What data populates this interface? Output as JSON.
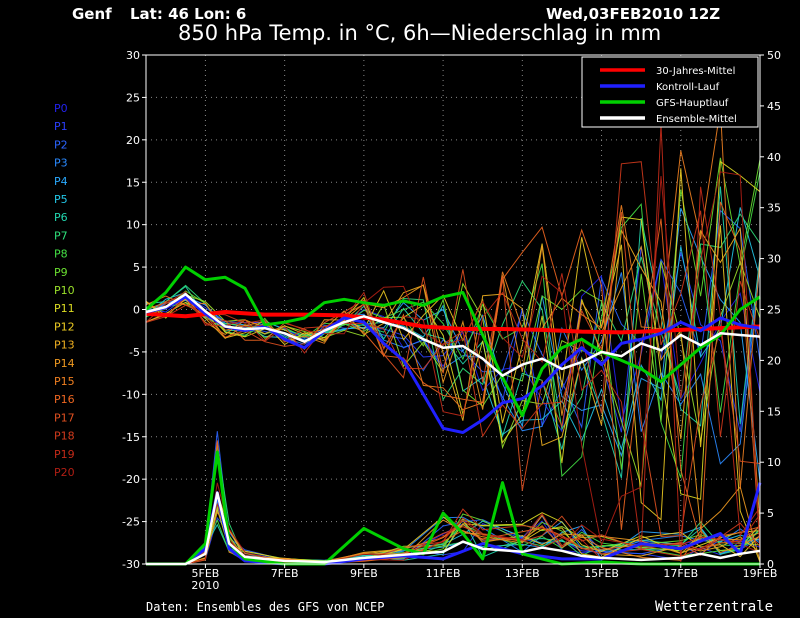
{
  "header": {
    "location": "Genf",
    "coords": "Lat: 46 Lon: 6",
    "run": "Wed,03FEB2010 12Z",
    "title": "850 hPa Temp. in °C, 6h—Niederschlag in mm"
  },
  "footer": {
    "source": "Daten: Ensembles des GFS von NCEP",
    "brand": "Wetterzentrale"
  },
  "colors": {
    "grid": "#888888",
    "clim": "#ff0000",
    "control": "#2020ff",
    "main": "#00d000",
    "mean": "#ffffff"
  },
  "members": [
    {
      "label": "P0",
      "color": "#2222ee"
    },
    {
      "label": "P1",
      "color": "#2b3fff"
    },
    {
      "label": "P2",
      "color": "#2a63ff"
    },
    {
      "label": "P3",
      "color": "#2a8aff"
    },
    {
      "label": "P4",
      "color": "#2aaaff"
    },
    {
      "label": "P5",
      "color": "#22c8e8"
    },
    {
      "label": "P6",
      "color": "#22d8b0"
    },
    {
      "label": "P7",
      "color": "#2ee07a"
    },
    {
      "label": "P8",
      "color": "#44e044"
    },
    {
      "label": "P9",
      "color": "#6ae030"
    },
    {
      "label": "P10",
      "color": "#9ae02a"
    },
    {
      "label": "P11",
      "color": "#dddd22"
    },
    {
      "label": "P12",
      "color": "#eecc22"
    },
    {
      "label": "P13",
      "color": "#f0b020"
    },
    {
      "label": "P14",
      "color": "#f09a20"
    },
    {
      "label": "P15",
      "color": "#f07f20"
    },
    {
      "label": "P16",
      "color": "#ee6620"
    },
    {
      "label": "P17",
      "color": "#e05020"
    },
    {
      "label": "P18",
      "color": "#d23a1c"
    },
    {
      "label": "P19",
      "color": "#c42a18"
    },
    {
      "label": "P20",
      "color": "#b01e14"
    }
  ],
  "chart_data": {
    "type": "line",
    "title": "850 hPa Temp. in °C, 6h—Niederschlag in mm",
    "x_ticks": [
      {
        "day": 5,
        "label": "5FEB",
        "sub": "2010"
      },
      {
        "day": 7,
        "label": "7FEB"
      },
      {
        "day": 9,
        "label": "9FEB"
      },
      {
        "day": 11,
        "label": "11FEB"
      },
      {
        "day": 13,
        "label": "13FEB"
      },
      {
        "day": 15,
        "label": "15FEB"
      },
      {
        "day": 17,
        "label": "17FEB"
      },
      {
        "day": 19,
        "label": "19FEB"
      }
    ],
    "xlim": [
      3.5,
      19
    ],
    "ylim_left": [
      -30,
      30
    ],
    "left_ticks": [
      30,
      25,
      20,
      15,
      10,
      5,
      0,
      -5,
      -10,
      -15,
      -20,
      -25,
      -30
    ],
    "ylim_right": [
      0,
      50
    ],
    "right_ticks": [
      50,
      45,
      40,
      35,
      30,
      25,
      20,
      15,
      10,
      5,
      0
    ],
    "grid": true,
    "legend": {
      "position": "top-right",
      "entries": [
        {
          "label": "30-Jahres-Mittel",
          "key": "clim"
        },
        {
          "label": "Kontroll-Lauf",
          "key": "control"
        },
        {
          "label": "GFS-Hauptlauf",
          "key": "main"
        },
        {
          "label": "Ensemble-Mittel",
          "key": "mean"
        }
      ]
    },
    "series": [
      {
        "name": "30-Jahres-Mittel",
        "key": "clim",
        "axis": "left",
        "points": [
          [
            3.5,
            -0.5
          ],
          [
            4.5,
            -0.8
          ],
          [
            5.5,
            -0.3
          ],
          [
            6.5,
            -0.6
          ],
          [
            7.5,
            -0.6
          ],
          [
            8.5,
            -0.7
          ],
          [
            9.5,
            -1.2
          ],
          [
            10.5,
            -2.0
          ],
          [
            11.5,
            -2.3
          ],
          [
            12.5,
            -2.3
          ],
          [
            13.5,
            -2.4
          ],
          [
            14.5,
            -2.6
          ],
          [
            15.5,
            -2.7
          ],
          [
            16.5,
            -2.5
          ],
          [
            17.5,
            -2.3
          ],
          [
            18.5,
            -2.1
          ],
          [
            19,
            -2.0
          ]
        ]
      },
      {
        "name": "Ensemble-Mittel",
        "key": "mean",
        "axis": "left",
        "points": [
          [
            3.5,
            -0.3
          ],
          [
            4,
            0.3
          ],
          [
            4.5,
            1.8
          ],
          [
            5,
            -0.2
          ],
          [
            5.5,
            -2.0
          ],
          [
            6,
            -2.3
          ],
          [
            6.5,
            -2.2
          ],
          [
            7,
            -2.8
          ],
          [
            7.5,
            -3.8
          ],
          [
            8,
            -2.5
          ],
          [
            8.5,
            -1.5
          ],
          [
            9,
            -0.8
          ],
          [
            9.5,
            -1.5
          ],
          [
            10,
            -2.2
          ],
          [
            10.5,
            -3.5
          ],
          [
            11,
            -4.5
          ],
          [
            11.5,
            -4.3
          ],
          [
            12,
            -5.8
          ],
          [
            12.5,
            -7.8
          ],
          [
            13,
            -6.5
          ],
          [
            13.5,
            -5.8
          ],
          [
            14,
            -7.0
          ],
          [
            14.5,
            -6.2
          ],
          [
            15,
            -5.0
          ],
          [
            15.5,
            -5.5
          ],
          [
            16,
            -4.0
          ],
          [
            16.5,
            -4.8
          ],
          [
            17,
            -3.0
          ],
          [
            17.5,
            -4.2
          ],
          [
            18,
            -2.8
          ],
          [
            18.5,
            -3.0
          ],
          [
            19,
            -3.2
          ]
        ]
      },
      {
        "name": "Kontroll-Lauf",
        "key": "control",
        "axis": "left",
        "points": [
          [
            3.5,
            -0.3
          ],
          [
            4,
            0.2
          ],
          [
            4.5,
            1.5
          ],
          [
            5,
            -0.5
          ],
          [
            5.5,
            -2.0
          ],
          [
            6,
            -2.5
          ],
          [
            6.5,
            -2.0
          ],
          [
            7,
            -3.5
          ],
          [
            7.5,
            -4.5
          ],
          [
            8,
            -2.5
          ],
          [
            8.5,
            -1.0
          ],
          [
            9,
            -1.5
          ],
          [
            9.5,
            -4.0
          ],
          [
            10,
            -6.0
          ],
          [
            10.5,
            -10.0
          ],
          [
            11,
            -14.0
          ],
          [
            11.5,
            -14.5
          ],
          [
            12,
            -13.0
          ],
          [
            12.5,
            -11.0
          ],
          [
            13,
            -10.5
          ],
          [
            13.5,
            -9.0
          ],
          [
            14,
            -6.5
          ],
          [
            14.5,
            -4.5
          ],
          [
            15,
            -6.5
          ],
          [
            15.5,
            -4.0
          ],
          [
            16,
            -3.5
          ],
          [
            16.5,
            -2.8
          ],
          [
            17,
            -1.5
          ],
          [
            17.5,
            -2.5
          ],
          [
            18,
            -1.0
          ],
          [
            18.5,
            -1.8
          ],
          [
            19,
            -2.2
          ]
        ]
      },
      {
        "name": "GFS-Hauptlauf",
        "key": "main",
        "axis": "left",
        "points": [
          [
            3.5,
            0.0
          ],
          [
            4,
            2.0
          ],
          [
            4.5,
            5.0
          ],
          [
            5,
            3.5
          ],
          [
            5.5,
            3.8
          ],
          [
            6,
            2.5
          ],
          [
            6.5,
            -1.8
          ],
          [
            7,
            -1.5
          ],
          [
            7.5,
            -1.0
          ],
          [
            8,
            0.8
          ],
          [
            8.5,
            1.2
          ],
          [
            9,
            0.8
          ],
          [
            9.5,
            0.5
          ],
          [
            10,
            1.0
          ],
          [
            10.5,
            0.5
          ],
          [
            11,
            1.5
          ],
          [
            11.5,
            2.0
          ],
          [
            12,
            -3.0
          ],
          [
            12.5,
            -8.0
          ],
          [
            13,
            -12.5
          ],
          [
            13.5,
            -7.0
          ],
          [
            14,
            -4.5
          ],
          [
            14.5,
            -3.5
          ],
          [
            15,
            -5.0
          ],
          [
            15.5,
            -6.0
          ],
          [
            16,
            -7.0
          ],
          [
            16.5,
            -8.5
          ],
          [
            17,
            -6.5
          ],
          [
            17.5,
            -4.5
          ],
          [
            18,
            -3.0
          ],
          [
            18.5,
            0.0
          ],
          [
            19,
            1.5
          ]
        ]
      },
      {
        "name": "Ensemble-Mittel Niederschlag",
        "key": "mean",
        "axis": "right",
        "points": [
          [
            3.5,
            0
          ],
          [
            4.5,
            0
          ],
          [
            5,
            1
          ],
          [
            5.3,
            7
          ],
          [
            5.6,
            2
          ],
          [
            6,
            0.7
          ],
          [
            7,
            0.3
          ],
          [
            8,
            0.2
          ],
          [
            9,
            0.6
          ],
          [
            10,
            0.9
          ],
          [
            11,
            1.2
          ],
          [
            11.5,
            2.2
          ],
          [
            12,
            1.5
          ],
          [
            13,
            1.2
          ],
          [
            13.5,
            1.6
          ],
          [
            14,
            1.3
          ],
          [
            14.5,
            0.8
          ],
          [
            15,
            0.6
          ],
          [
            16,
            0.4
          ],
          [
            17,
            0.6
          ],
          [
            17.5,
            1.0
          ],
          [
            18,
            0.6
          ],
          [
            18.5,
            1.0
          ],
          [
            19,
            1.3
          ]
        ]
      },
      {
        "name": "GFS-Hauptlauf Niederschlag",
        "key": "main",
        "axis": "right",
        "points": [
          [
            3.5,
            0
          ],
          [
            4.5,
            0
          ],
          [
            5,
            2
          ],
          [
            5.3,
            11
          ],
          [
            5.6,
            2
          ],
          [
            6,
            0.5
          ],
          [
            7,
            0
          ],
          [
            8,
            0
          ],
          [
            9,
            3.5
          ],
          [
            10,
            1.5
          ],
          [
            10.5,
            1
          ],
          [
            11,
            5
          ],
          [
            11.5,
            3
          ],
          [
            12,
            0.5
          ],
          [
            12.5,
            8
          ],
          [
            13,
            1.0
          ],
          [
            13.5,
            0.5
          ],
          [
            14,
            0
          ],
          [
            15,
            0.2
          ],
          [
            16,
            0
          ],
          [
            17,
            0
          ],
          [
            18,
            0
          ],
          [
            19,
            0
          ]
        ]
      },
      {
        "name": "Kontroll-Lauf Niederschlag",
        "key": "control",
        "axis": "right",
        "points": [
          [
            3.5,
            0
          ],
          [
            4.5,
            0
          ],
          [
            5,
            1.5
          ],
          [
            5.3,
            7
          ],
          [
            5.6,
            1.5
          ],
          [
            6,
            0.3
          ],
          [
            7,
            0
          ],
          [
            8,
            0
          ],
          [
            9,
            0.5
          ],
          [
            10,
            0.8
          ],
          [
            11,
            0.5
          ],
          [
            12,
            2
          ],
          [
            13,
            1
          ],
          [
            14,
            0.5
          ],
          [
            15,
            0.5
          ],
          [
            16,
            2
          ],
          [
            17,
            1.5
          ],
          [
            18,
            3
          ],
          [
            18.5,
            1
          ],
          [
            19,
            8
          ]
        ]
      }
    ]
  }
}
